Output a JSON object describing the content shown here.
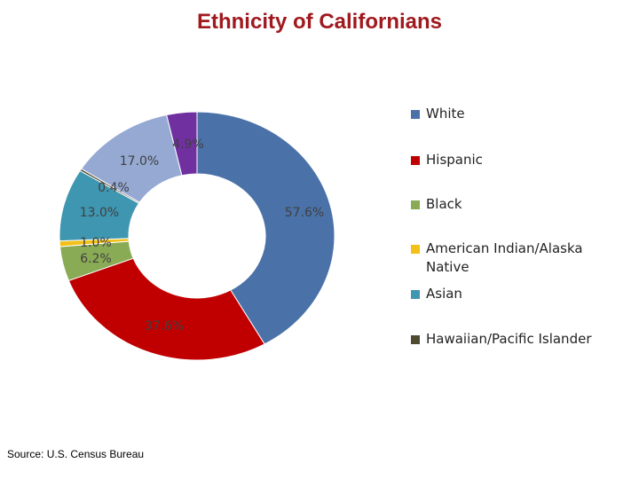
{
  "chart_data": {
    "type": "pie",
    "title": "Ethnicity of Californians",
    "categories": [
      "White",
      "Hispanic",
      "Black",
      "American Indian/Alaska Native",
      "Asian",
      "Hawaiian/Pacific Islander",
      null,
      null
    ],
    "values": [
      57.6,
      37.6,
      6.2,
      1.0,
      13.0,
      0.4,
      17.0,
      4.9
    ],
    "value_labels": [
      "57.6%",
      "37.6%",
      "6.2%",
      "1.0%",
      "13.0%",
      "0.4%",
      "17.0%",
      "4.9%"
    ],
    "colors": [
      "#4a72a8",
      "#c00000",
      "#8aab55",
      "#f2c018",
      "#3e96b0",
      "#4f4a32",
      "#95a9d3",
      "#7030a0"
    ],
    "donut": true,
    "legend": "right",
    "source": "Source: U.S. Census Bureau"
  }
}
